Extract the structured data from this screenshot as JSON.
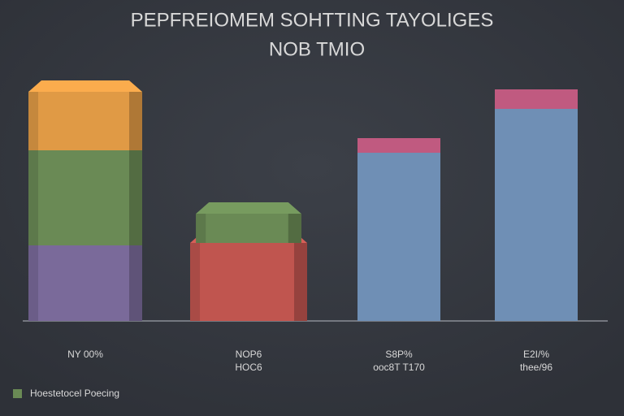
{
  "chart_data": {
    "type": "stacked-bar",
    "title": "PEPFREIOMEM SOHTTING TAYOLIGES",
    "subtitle": "NOB TMIO",
    "categories": [
      "NY 00%",
      "NOP6",
      "S8P%",
      "E2I/%"
    ],
    "sublabels": [
      null,
      "HOC6",
      "ooc8T T170",
      "thee/96"
    ],
    "ylim": [
      0,
      100
    ],
    "series": [
      {
        "color": "#7a6a9a",
        "values": [
          31,
          null,
          null,
          null
        ]
      },
      {
        "color": "#c0554f",
        "values": [
          null,
          32,
          null,
          null
        ]
      },
      {
        "color": "#6f8fb5",
        "values": [
          null,
          null,
          69,
          87
        ]
      },
      {
        "name": "Hoestetocel Poecing",
        "color": "#6a8a55",
        "values": [
          39,
          12,
          null,
          null
        ]
      },
      {
        "color": "#e09a45",
        "values": [
          24,
          null,
          null,
          null
        ]
      },
      {
        "color": "#c05a80",
        "values": [
          null,
          null,
          6,
          8
        ]
      }
    ],
    "legend": "bottom-left"
  }
}
